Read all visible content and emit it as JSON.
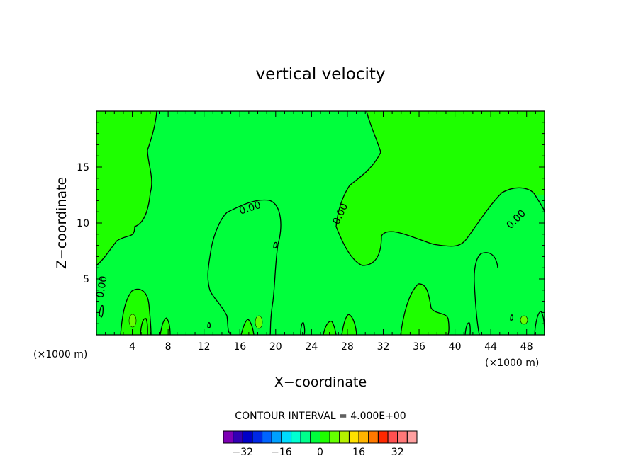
{
  "chart_data": {
    "type": "contour",
    "title": "vertical velocity",
    "xlabel": "X−coordinate",
    "ylabel": "Z−coordinate",
    "x_unit_left": "(×1000 m)",
    "x_unit_right": "(×1000 m)",
    "xlim": [
      0,
      50
    ],
    "ylim": [
      0,
      20
    ],
    "xticks": [
      4,
      8,
      12,
      16,
      20,
      24,
      28,
      32,
      36,
      40,
      44,
      48
    ],
    "xtick_labels": [
      "4",
      "8",
      "12",
      "16",
      "20",
      "24",
      "28",
      "32",
      "36",
      "40",
      "44",
      "48"
    ],
    "yticks": [
      5,
      10,
      15
    ],
    "ytick_labels": [
      "5",
      "10",
      "15"
    ],
    "contour_label": "0.00",
    "contour_interval_text": "CONTOUR INTERVAL = 4.000E+00",
    "colorbar": {
      "colors": [
        "#7d00b4",
        "#3200b4",
        "#0000c8",
        "#0028e6",
        "#0064ff",
        "#00a0ff",
        "#00dcff",
        "#00ffd2",
        "#00ff8c",
        "#00ff3c",
        "#1eff00",
        "#64ff00",
        "#b4f000",
        "#ffe100",
        "#ffb400",
        "#ff7800",
        "#ff2800",
        "#ff5050",
        "#ff7878",
        "#ffa0a0"
      ],
      "tick_values": [
        -32,
        -16,
        0,
        16,
        32
      ],
      "tick_labels": [
        "−32",
        "−16",
        "0",
        "16",
        "32"
      ]
    },
    "fills": {
      "positive": "#1eff00",
      "negative": "#00ff3c",
      "strong_positive": "#64ff00"
    }
  }
}
